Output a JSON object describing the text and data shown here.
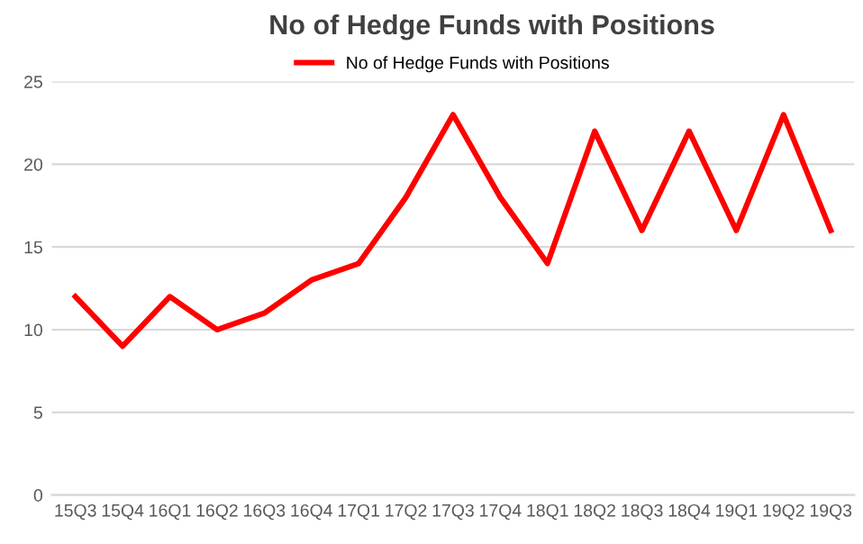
{
  "chart_data": {
    "type": "line",
    "title": "No of Hedge Funds with Positions",
    "categories": [
      "15Q3",
      "15Q4",
      "16Q1",
      "16Q2",
      "16Q3",
      "16Q4",
      "17Q1",
      "17Q2",
      "17Q3",
      "17Q4",
      "18Q1",
      "18Q2",
      "18Q3",
      "18Q4",
      "19Q1",
      "19Q2",
      "19Q3"
    ],
    "series": [
      {
        "name": "No of Hedge Funds with Positions",
        "color": "#ff0000",
        "values": [
          12,
          9,
          12,
          10,
          11,
          13,
          14,
          18,
          23,
          18,
          14,
          22,
          16,
          22,
          16,
          23,
          16
        ]
      }
    ],
    "ylim": [
      0,
      25
    ],
    "yticks": [
      0,
      5,
      10,
      15,
      20,
      25
    ],
    "grid": "y",
    "legend": "top"
  }
}
